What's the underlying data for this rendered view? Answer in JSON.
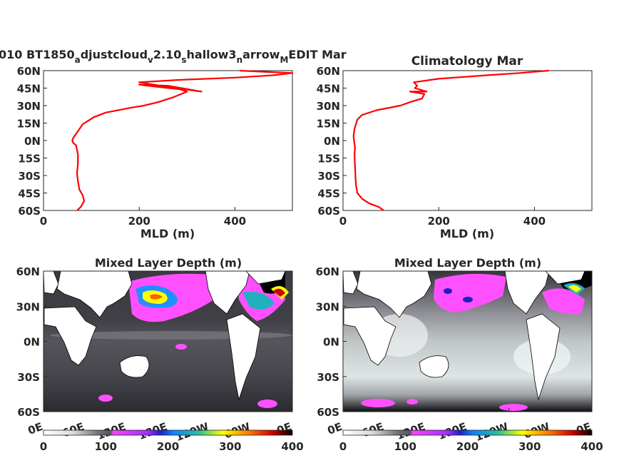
{
  "chart_data": [
    {
      "type": "line",
      "title": {
        "main": "010 BT1850",
        "s1": "a",
        "t1": "djustcloud",
        "s2": "v",
        "t2": "2.10",
        "s3": "s",
        "t3": "hallow3",
        "s4": "n",
        "t4": "arrow",
        "s5": "M",
        "t5": "EDIT Mar"
      },
      "xlabel": "MLD (m)",
      "xlim": [
        0,
        520
      ],
      "ylim": [
        -60,
        60
      ],
      "xticks": [
        "0",
        "200",
        "400"
      ],
      "yticks": [
        "60N",
        "45N",
        "30N",
        "15N",
        "0N",
        "15S",
        "30S",
        "45S",
        "60S"
      ],
      "line_color": "#ff0000",
      "x": [
        70,
        78,
        85,
        82,
        75,
        72,
        70,
        72,
        72,
        70,
        68,
        62,
        60,
        62,
        65,
        72,
        82,
        105,
        130,
        180,
        210,
        240,
        270,
        300,
        285,
        240,
        200,
        260,
        330,
        260,
        200,
        280,
        400,
        480,
        520,
        460,
        410
      ],
      "y": [
        -60,
        -57,
        -52,
        -47,
        -42,
        -35,
        -28,
        -20,
        -12,
        -8,
        -4,
        -2,
        0,
        2,
        4,
        8,
        14,
        20,
        24,
        28,
        30,
        33,
        37,
        42,
        44,
        46,
        48,
        47,
        42,
        46,
        50,
        52,
        54,
        56,
        58,
        59,
        60
      ]
    },
    {
      "type": "line",
      "title": "Climatology Mar",
      "xlabel": "MLD (m)",
      "xlim": [
        0,
        520
      ],
      "ylim": [
        -60,
        60
      ],
      "xticks": [
        "0",
        "200",
        "400"
      ],
      "yticks": [
        "60N",
        "45N",
        "30N",
        "15N",
        "0N",
        "15S",
        "30S",
        "45S",
        "60S"
      ],
      "line_color": "#ff0000",
      "x": [
        85,
        75,
        55,
        40,
        30,
        27,
        26,
        25,
        24,
        25,
        23,
        22,
        24,
        30,
        40,
        70,
        120,
        140,
        165,
        170,
        140,
        175,
        150,
        155,
        148,
        200,
        300,
        370,
        430
      ],
      "y": [
        -60,
        -57,
        -54,
        -50,
        -45,
        -38,
        -30,
        -22,
        -12,
        -6,
        0,
        4,
        10,
        18,
        22,
        26,
        30,
        33,
        36,
        40,
        42,
        42,
        45,
        47,
        50,
        53,
        56,
        58,
        60
      ]
    },
    {
      "type": "heatmap",
      "title": "Mixed Layer Depth (m)",
      "xticks": [
        "0E",
        "60E",
        "120E",
        "180E",
        "120W",
        "60W",
        "0E"
      ],
      "yticks": [
        "60N",
        "30N",
        "0N",
        "30S",
        "60S"
      ],
      "colorbar_ticks": [
        "0",
        "100",
        "200",
        "300",
        "400"
      ],
      "clim": [
        0,
        400
      ]
    },
    {
      "type": "heatmap",
      "title": "Mixed Layer Depth (m)",
      "xticks": [
        "0E",
        "60E",
        "120E",
        "180E",
        "120W",
        "60W",
        "0E"
      ],
      "yticks": [
        "60N",
        "30N",
        "0N",
        "30S",
        "60S"
      ],
      "colorbar_ticks": [
        "0",
        "100",
        "200",
        "300",
        "400"
      ],
      "clim": [
        0,
        400
      ]
    }
  ]
}
